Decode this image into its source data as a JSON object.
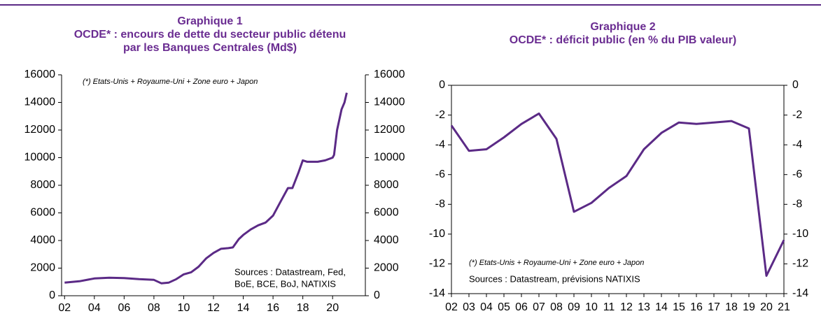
{
  "chart_data": [
    {
      "type": "line",
      "title": "Graphique 1",
      "subtitle": [
        "OCDE* : encours de dette du secteur public détenu",
        "par les Banques Centrales (Md$)"
      ],
      "annotation": "(*) Etats-Unis + Royaume-Uni + Zone euro + Japon",
      "sources": [
        "Sources : Datastream, Fed,",
        "BoE, BCE, BoJ, NATIXIS"
      ],
      "color": "#5b2a86",
      "x": [
        2002,
        2003,
        2004,
        2005,
        2006,
        2007,
        2008,
        2008.5,
        2009,
        2009.5,
        2010,
        2010.5,
        2011,
        2011.5,
        2012,
        2012.5,
        2013,
        2013.3,
        2013.7,
        2014,
        2014.5,
        2015,
        2015.5,
        2016,
        2016.5,
        2017,
        2017.3,
        2017.7,
        2018,
        2018.3,
        2019,
        2019.5,
        2020,
        2020.1,
        2020.3,
        2020.6,
        2020.8,
        2020.95
      ],
      "values": [
        950,
        1050,
        1250,
        1300,
        1280,
        1200,
        1150,
        900,
        950,
        1200,
        1550,
        1700,
        2100,
        2700,
        3100,
        3400,
        3450,
        3500,
        4100,
        4400,
        4800,
        5100,
        5300,
        5800,
        6800,
        7800,
        7800,
        8900,
        9800,
        9700,
        9700,
        9800,
        10000,
        10200,
        12000,
        13500,
        14000,
        14700
      ],
      "xlim": [
        2001.8,
        2022.2
      ],
      "xticks": [
        {
          "value": 2002,
          "label": "02"
        },
        {
          "value": 2004,
          "label": "04"
        },
        {
          "value": 2006,
          "label": "06"
        },
        {
          "value": 2008,
          "label": "08"
        },
        {
          "value": 2010,
          "label": "10"
        },
        {
          "value": 2012,
          "label": "12"
        },
        {
          "value": 2014,
          "label": "14"
        },
        {
          "value": 2016,
          "label": "16"
        },
        {
          "value": 2018,
          "label": "18"
        },
        {
          "value": 2020,
          "label": "20"
        }
      ],
      "ylim": [
        0,
        16000
      ],
      "yticks": [
        0,
        2000,
        4000,
        6000,
        8000,
        10000,
        12000,
        14000,
        16000
      ],
      "y2lim": [
        0,
        16000
      ],
      "y2ticks": [
        0,
        2000,
        4000,
        6000,
        8000,
        10000,
        12000,
        14000,
        16000
      ]
    },
    {
      "type": "line",
      "title": "Graphique 2",
      "subtitle": [
        "OCDE* : déficit public (en % du PIB valeur)"
      ],
      "annotation": "(*) Etats-Unis + Royaume-Uni + Zone euro + Japon",
      "sources": [
        "Sources : Datastream, prévisions NATIXIS"
      ],
      "color": "#5b2a86",
      "categories": [
        "02",
        "03",
        "04",
        "05",
        "06",
        "07",
        "08",
        "09",
        "10",
        "11",
        "12",
        "13",
        "14",
        "15",
        "16",
        "17",
        "18",
        "19",
        "20",
        "21"
      ],
      "values": [
        -2.7,
        -4.4,
        -4.3,
        -3.5,
        -2.6,
        -1.9,
        -3.6,
        -8.5,
        -7.9,
        -6.9,
        -6.1,
        -4.3,
        -3.2,
        -2.5,
        -2.6,
        -2.5,
        -2.4,
        -2.9,
        -12.8,
        -10.4
      ],
      "ylim": [
        -14,
        0
      ],
      "yticks": [
        0,
        -2,
        -4,
        -6,
        -8,
        -10,
        -12,
        -14
      ],
      "y2lim": [
        -14,
        0
      ],
      "y2ticks": [
        0,
        -2,
        -4,
        -6,
        -8,
        -10,
        -12,
        -14
      ]
    }
  ]
}
